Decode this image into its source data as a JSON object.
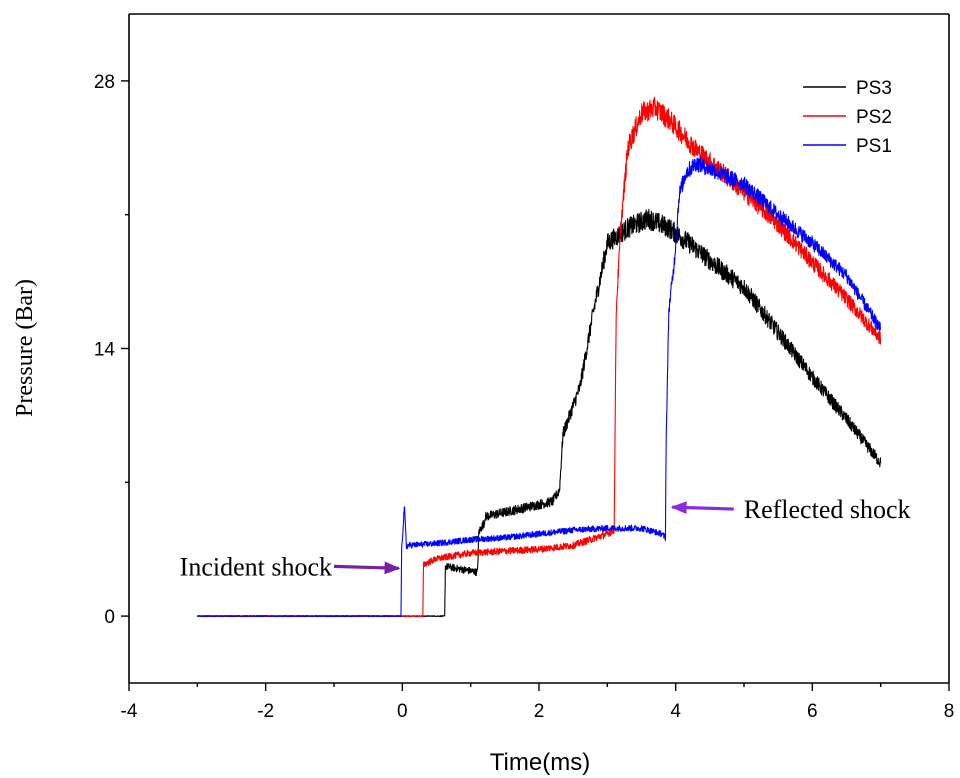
{
  "chart_data": {
    "type": "line",
    "title": "",
    "xlabel": "Time(ms)",
    "ylabel": "Pressure (Bar)",
    "xlim": [
      -4,
      8
    ],
    "ylim": [
      -3.5,
      31.5
    ],
    "x_ticks": [
      "-4",
      "-2",
      "0",
      "2",
      "4",
      "6",
      "8"
    ],
    "x_tick_values": [
      -4,
      -2,
      0,
      2,
      4,
      6,
      8
    ],
    "y_ticks": [
      "0",
      "14",
      "28"
    ],
    "y_tick_values": [
      0,
      14,
      28
    ],
    "grid": false,
    "legend_position": "top-right",
    "series": [
      {
        "name": "PS3",
        "color": "#000000",
        "noise": 0.35,
        "x": [
          -3,
          0.62,
          0.63,
          1.1,
          1.12,
          1.2,
          1.21,
          2.2,
          2.3,
          2.35,
          2.6,
          2.8,
          3.0,
          3.3,
          3.6,
          3.9,
          4.2,
          4.6,
          5.0,
          5.4,
          6.0,
          6.5,
          7.0
        ],
        "y": [
          0,
          0,
          2.6,
          2.3,
          4.4,
          4.9,
          5.2,
          6.0,
          6.6,
          9.5,
          12.0,
          16.0,
          19.5,
          20.3,
          20.8,
          20.3,
          19.5,
          18.3,
          17.2,
          15.3,
          12.5,
          10.3,
          8.0
        ]
      },
      {
        "name": "PS2",
        "color": "#ff0000",
        "noise": 0.3,
        "x": [
          -3,
          0.3,
          0.31,
          0.5,
          1.0,
          1.5,
          2.0,
          2.5,
          3.0,
          3.1,
          3.13,
          3.2,
          3.3,
          3.5,
          3.7,
          3.9,
          4.3,
          5.0,
          5.5,
          6.0,
          6.5,
          7.0
        ],
        "y": [
          0,
          0,
          2.7,
          3.0,
          3.3,
          3.4,
          3.5,
          3.7,
          4.3,
          4.5,
          16.0,
          20.5,
          24.5,
          26.3,
          26.6,
          26.0,
          24.4,
          22.2,
          20.5,
          18.5,
          16.6,
          14.5
        ]
      },
      {
        "name": "PS1",
        "color": "#0000ff",
        "noise": 0.25,
        "x": [
          -3,
          -0.02,
          -0.01,
          0.03,
          0.06,
          0.08,
          0.5,
          1.0,
          1.5,
          2.0,
          2.5,
          3.0,
          3.5,
          3.8,
          3.85,
          3.86,
          3.9,
          3.98,
          4.05,
          4.15,
          4.3,
          4.5,
          5.0,
          5.5,
          6.0,
          6.5,
          7.0
        ],
        "y": [
          0,
          0,
          3.4,
          5.8,
          3.6,
          3.7,
          3.8,
          4.0,
          4.1,
          4.3,
          4.5,
          4.6,
          4.6,
          4.3,
          4.1,
          9.0,
          16.0,
          18.5,
          22.0,
          23.2,
          23.7,
          23.4,
          22.6,
          21.0,
          19.5,
          17.8,
          15.0
        ]
      }
    ],
    "annotations": [
      {
        "text": "Incident shock",
        "arrow_to": [
          -0.05,
          2.5
        ],
        "arrow_from": [
          -1.0,
          2.6
        ],
        "color": "#7a1fa0"
      },
      {
        "text": "Reflected shock",
        "arrow_to": [
          3.95,
          5.7
        ],
        "arrow_from": [
          4.85,
          5.6
        ],
        "color": "#8a2be2"
      }
    ]
  }
}
